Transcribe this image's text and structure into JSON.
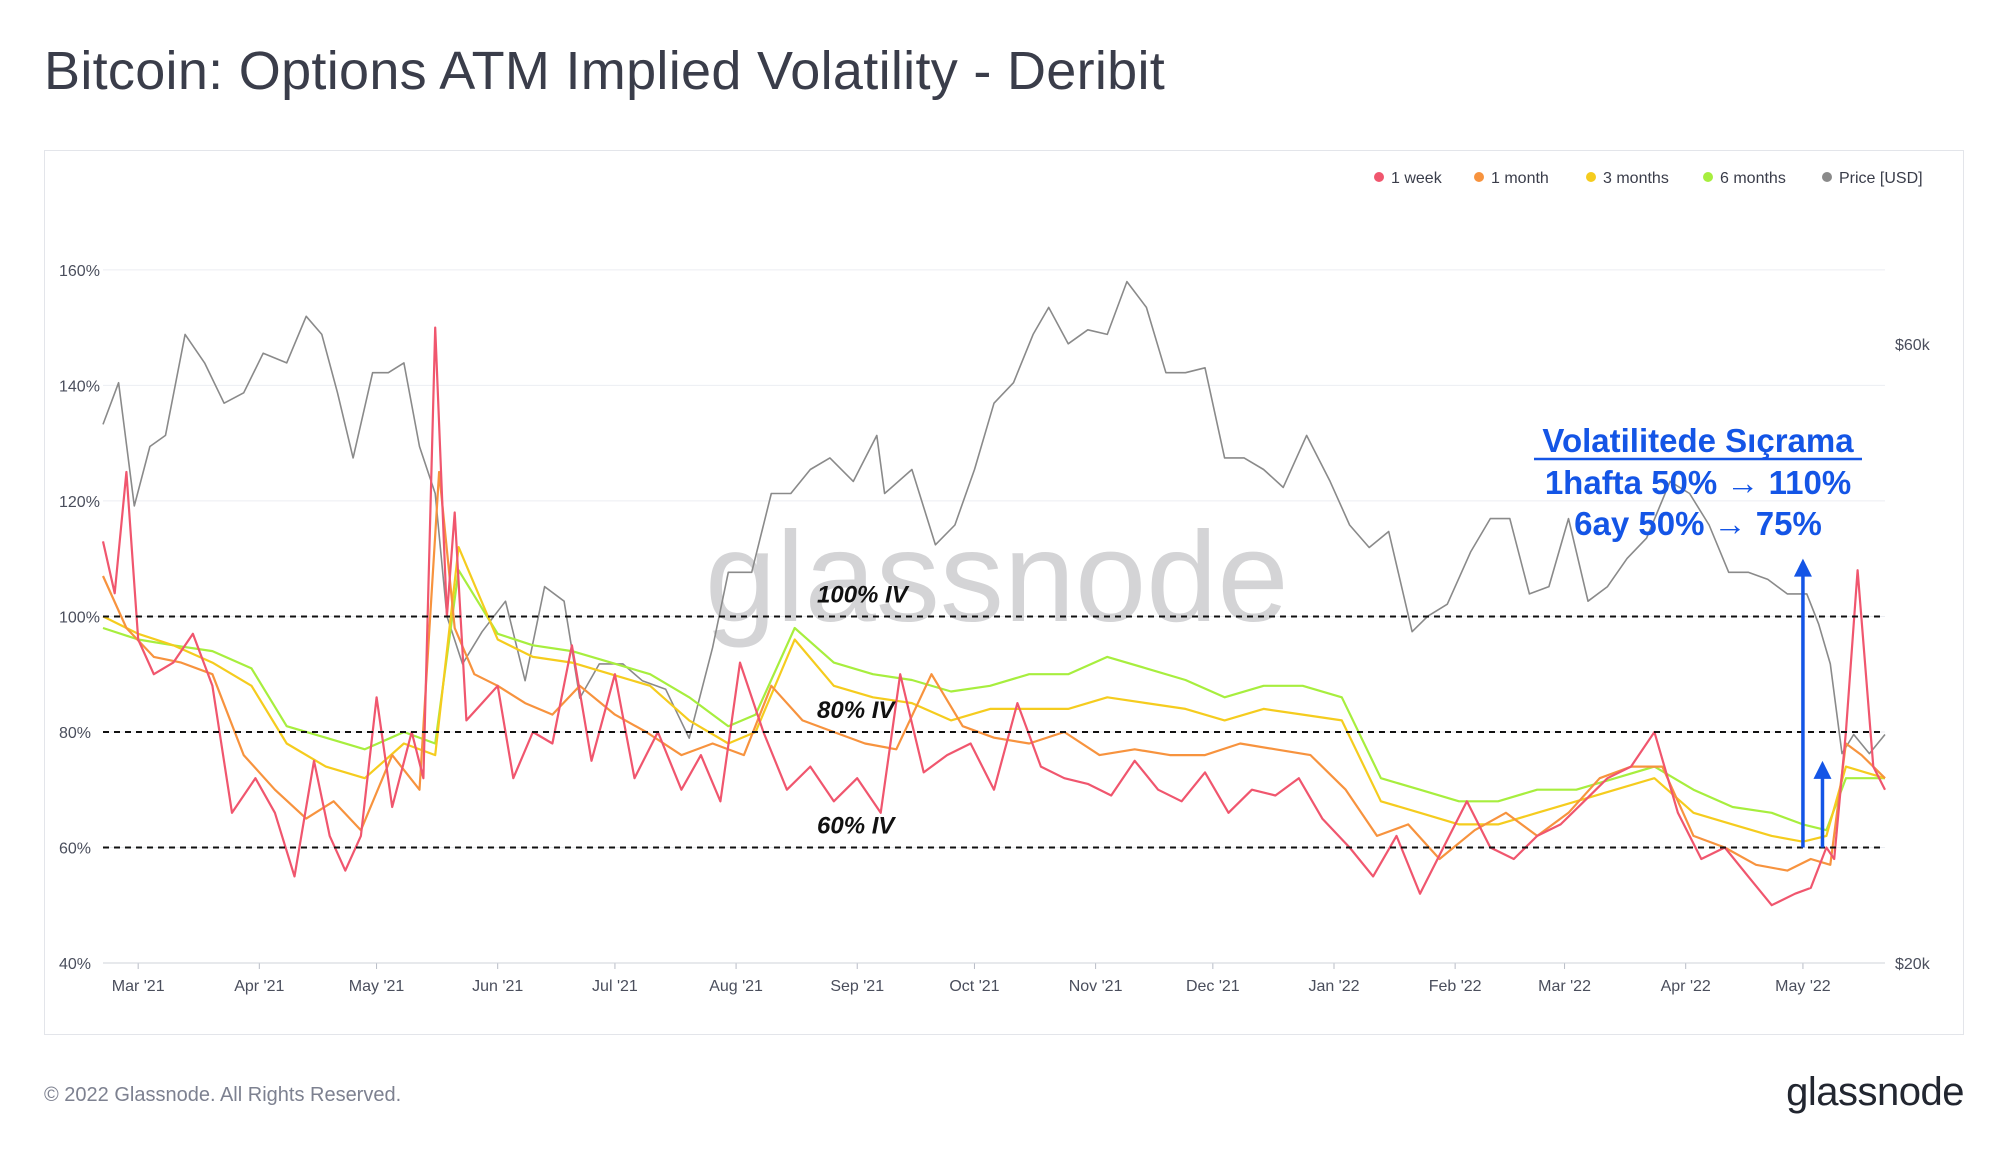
{
  "title": "Bitcoin: Options ATM Implied Volatility - Deribit",
  "footer": {
    "copyright": "© 2022 Glassnode. All Rights Reserved.",
    "logo": "glassnode"
  },
  "watermark": "glassnode",
  "colors": {
    "1w": "#f0566e",
    "1m": "#f7933e",
    "3m": "#f5cc1e",
    "6m": "#a7ee3e",
    "price": "#8a8a8a",
    "annotation": "#1455e6",
    "grid": "#eceef2"
  },
  "chart_data": {
    "type": "line",
    "title": "Bitcoin: Options ATM Implied Volatility - Deribit",
    "x_ticks": [
      "Mar '21",
      "Apr '21",
      "May '21",
      "Jun '21",
      "Jul '21",
      "Aug '21",
      "Sep '21",
      "Oct '21",
      "Nov '21",
      "Dec '21",
      "Jan '22",
      "Feb '22",
      "Mar '22",
      "Apr '22",
      "May '22"
    ],
    "x_range": [
      "2021-02-20",
      "2022-05-22"
    ],
    "y_left": {
      "ticks": [
        "40%",
        "60%",
        "80%",
        "100%",
        "120%",
        "140%",
        "160%"
      ],
      "range": [
        40,
        165
      ]
    },
    "y_right": {
      "ticks": [
        "$20k",
        "$60k"
      ],
      "scale": "log",
      "range": [
        20000,
        72000
      ]
    },
    "legend": [
      {
        "key": "1w",
        "label": "1 week"
      },
      {
        "key": "1m",
        "label": "1 month"
      },
      {
        "key": "3m",
        "label": "3 months"
      },
      {
        "key": "6m",
        "label": "6 months"
      },
      {
        "key": "price",
        "label": "Price [USD]"
      }
    ],
    "legend_position": "top-right",
    "reference_lines": [
      {
        "value": 100,
        "label": "100% IV"
      },
      {
        "value": 80,
        "label": "80% IV"
      },
      {
        "value": 60,
        "label": "60% IV"
      }
    ],
    "annotation": {
      "lines": [
        "Volatilitede Sıçrama",
        "1hafta 50% → 110%",
        "6ay 50% → 75%"
      ],
      "arrows": [
        {
          "date": "2022-05-01",
          "from": 60,
          "to": 110
        },
        {
          "date": "2022-05-06",
          "from": 60,
          "to": 75
        }
      ]
    },
    "series": [
      {
        "key": "1w",
        "name": "1 week",
        "x": [
          "2021-02-20",
          "2021-02-23",
          "2021-02-26",
          "2021-03-01",
          "2021-03-05",
          "2021-03-10",
          "2021-03-15",
          "2021-03-20",
          "2021-03-25",
          "2021-03-31",
          "2021-04-05",
          "2021-04-10",
          "2021-04-15",
          "2021-04-19",
          "2021-04-23",
          "2021-04-27",
          "2021-05-01",
          "2021-05-05",
          "2021-05-10",
          "2021-05-13",
          "2021-05-16",
          "2021-05-19",
          "2021-05-21",
          "2021-05-24",
          "2021-05-28",
          "2021-06-01",
          "2021-06-05",
          "2021-06-10",
          "2021-06-15",
          "2021-06-20",
          "2021-06-25",
          "2021-07-01",
          "2021-07-06",
          "2021-07-12",
          "2021-07-18",
          "2021-07-23",
          "2021-07-28",
          "2021-08-02",
          "2021-08-08",
          "2021-08-14",
          "2021-08-20",
          "2021-08-26",
          "2021-09-01",
          "2021-09-07",
          "2021-09-12",
          "2021-09-18",
          "2021-09-24",
          "2021-09-30",
          "2021-10-06",
          "2021-10-12",
          "2021-10-18",
          "2021-10-24",
          "2021-10-30",
          "2021-11-05",
          "2021-11-11",
          "2021-11-17",
          "2021-11-23",
          "2021-11-29",
          "2021-12-05",
          "2021-12-11",
          "2021-12-17",
          "2021-12-23",
          "2021-12-29",
          "2022-01-05",
          "2022-01-11",
          "2022-01-17",
          "2022-01-23",
          "2022-01-29",
          "2022-02-04",
          "2022-02-10",
          "2022-02-16",
          "2022-02-22",
          "2022-02-28",
          "2022-03-06",
          "2022-03-12",
          "2022-03-18",
          "2022-03-24",
          "2022-03-30",
          "2022-04-05",
          "2022-04-11",
          "2022-04-17",
          "2022-04-23",
          "2022-04-29",
          "2022-05-03",
          "2022-05-07",
          "2022-05-09",
          "2022-05-12",
          "2022-05-15",
          "2022-05-19",
          "2022-05-22"
        ],
        "values": [
          113,
          104,
          125,
          96,
          90,
          92,
          97,
          88,
          66,
          72,
          66,
          55,
          75,
          62,
          56,
          62,
          86,
          67,
          80,
          72,
          150,
          100,
          118,
          82,
          85,
          88,
          72,
          80,
          78,
          95,
          75,
          90,
          72,
          80,
          70,
          76,
          68,
          92,
          80,
          70,
          74,
          68,
          72,
          66,
          90,
          73,
          76,
          78,
          70,
          85,
          74,
          72,
          71,
          69,
          75,
          70,
          68,
          73,
          66,
          70,
          69,
          72,
          65,
          60,
          55,
          62,
          52,
          60,
          68,
          60,
          58,
          62,
          64,
          68,
          72,
          74,
          80,
          66,
          58,
          60,
          55,
          50,
          52,
          53,
          60,
          58,
          80,
          108,
          74,
          70
        ]
      },
      {
        "key": "1m",
        "name": "1 month",
        "x": [
          "2021-02-20",
          "2021-02-26",
          "2021-03-05",
          "2021-03-12",
          "2021-03-20",
          "2021-03-28",
          "2021-04-05",
          "2021-04-13",
          "2021-04-20",
          "2021-04-27",
          "2021-05-05",
          "2021-05-12",
          "2021-05-17",
          "2021-05-21",
          "2021-05-26",
          "2021-06-01",
          "2021-06-08",
          "2021-06-15",
          "2021-06-22",
          "2021-07-01",
          "2021-07-09",
          "2021-07-18",
          "2021-07-26",
          "2021-08-03",
          "2021-08-10",
          "2021-08-18",
          "2021-08-26",
          "2021-09-03",
          "2021-09-11",
          "2021-09-20",
          "2021-09-28",
          "2021-10-06",
          "2021-10-15",
          "2021-10-24",
          "2021-11-02",
          "2021-11-11",
          "2021-11-20",
          "2021-11-29",
          "2021-12-08",
          "2021-12-17",
          "2021-12-26",
          "2022-01-04",
          "2022-01-12",
          "2022-01-20",
          "2022-01-28",
          "2022-02-06",
          "2022-02-14",
          "2022-02-22",
          "2022-03-02",
          "2022-03-10",
          "2022-03-18",
          "2022-03-26",
          "2022-04-03",
          "2022-04-11",
          "2022-04-19",
          "2022-04-27",
          "2022-05-03",
          "2022-05-08",
          "2022-05-12",
          "2022-05-16",
          "2022-05-22"
        ],
        "values": [
          107,
          98,
          93,
          92,
          90,
          76,
          70,
          65,
          68,
          63,
          76,
          70,
          125,
          98,
          90,
          88,
          85,
          83,
          88,
          83,
          80,
          76,
          78,
          76,
          88,
          82,
          80,
          78,
          77,
          90,
          81,
          79,
          78,
          80,
          76,
          77,
          76,
          76,
          78,
          77,
          76,
          70,
          62,
          64,
          58,
          63,
          66,
          62,
          66,
          72,
          74,
          74,
          62,
          60,
          57,
          56,
          58,
          57,
          78,
          76,
          72
        ]
      },
      {
        "key": "3m",
        "name": "3 months",
        "x": [
          "2021-02-20",
          "2021-03-01",
          "2021-03-10",
          "2021-03-20",
          "2021-03-30",
          "2021-04-08",
          "2021-04-18",
          "2021-04-28",
          "2021-05-08",
          "2021-05-16",
          "2021-05-22",
          "2021-06-01",
          "2021-06-10",
          "2021-06-20",
          "2021-06-30",
          "2021-07-10",
          "2021-07-20",
          "2021-07-30",
          "2021-08-06",
          "2021-08-16",
          "2021-08-26",
          "2021-09-05",
          "2021-09-15",
          "2021-09-25",
          "2021-10-05",
          "2021-10-15",
          "2021-10-25",
          "2021-11-04",
          "2021-11-14",
          "2021-11-24",
          "2021-12-04",
          "2021-12-14",
          "2021-12-24",
          "2022-01-03",
          "2022-01-13",
          "2022-01-23",
          "2022-02-02",
          "2022-02-12",
          "2022-02-22",
          "2022-03-04",
          "2022-03-14",
          "2022-03-24",
          "2022-04-03",
          "2022-04-13",
          "2022-04-23",
          "2022-05-01",
          "2022-05-07",
          "2022-05-12",
          "2022-05-17",
          "2022-05-22"
        ],
        "values": [
          100,
          97,
          95,
          92,
          88,
          78,
          74,
          72,
          78,
          76,
          112,
          96,
          93,
          92,
          90,
          88,
          82,
          78,
          80,
          96,
          88,
          86,
          85,
          82,
          84,
          84,
          84,
          86,
          85,
          84,
          82,
          84,
          83,
          82,
          68,
          66,
          64,
          64,
          66,
          68,
          70,
          72,
          66,
          64,
          62,
          61,
          62,
          74,
          73,
          72
        ]
      },
      {
        "key": "6m",
        "name": "6 months",
        "x": [
          "2021-02-20",
          "2021-03-01",
          "2021-03-10",
          "2021-03-20",
          "2021-03-30",
          "2021-04-08",
          "2021-04-18",
          "2021-04-28",
          "2021-05-08",
          "2021-05-16",
          "2021-05-22",
          "2021-06-01",
          "2021-06-10",
          "2021-06-20",
          "2021-06-30",
          "2021-07-10",
          "2021-07-20",
          "2021-07-30",
          "2021-08-06",
          "2021-08-16",
          "2021-08-26",
          "2021-09-05",
          "2021-09-15",
          "2021-09-25",
          "2021-10-05",
          "2021-10-15",
          "2021-10-25",
          "2021-11-04",
          "2021-11-14",
          "2021-11-24",
          "2021-12-04",
          "2021-12-14",
          "2021-12-24",
          "2022-01-03",
          "2022-01-13",
          "2022-01-23",
          "2022-02-02",
          "2022-02-12",
          "2022-02-22",
          "2022-03-04",
          "2022-03-14",
          "2022-03-24",
          "2022-04-03",
          "2022-04-13",
          "2022-04-23",
          "2022-05-01",
          "2022-05-07",
          "2022-05-12",
          "2022-05-17",
          "2022-05-22"
        ],
        "values": [
          98,
          96,
          95,
          94,
          91,
          81,
          79,
          77,
          80,
          78,
          108,
          97,
          95,
          94,
          92,
          90,
          86,
          81,
          83,
          98,
          92,
          90,
          89,
          87,
          88,
          90,
          90,
          93,
          91,
          89,
          86,
          88,
          88,
          86,
          72,
          70,
          68,
          68,
          70,
          70,
          72,
          74,
          70,
          67,
          66,
          64,
          63,
          72,
          72,
          72
        ]
      },
      {
        "key": "price",
        "name": "Price [USD]",
        "x": [
          "2021-02-20",
          "2021-02-24",
          "2021-02-28",
          "2021-03-04",
          "2021-03-08",
          "2021-03-13",
          "2021-03-18",
          "2021-03-23",
          "2021-03-28",
          "2021-04-02",
          "2021-04-08",
          "2021-04-13",
          "2021-04-17",
          "2021-04-21",
          "2021-04-25",
          "2021-04-30",
          "2021-05-04",
          "2021-05-08",
          "2021-05-12",
          "2021-05-16",
          "2021-05-19",
          "2021-05-23",
          "2021-05-28",
          "2021-06-03",
          "2021-06-08",
          "2021-06-13",
          "2021-06-18",
          "2021-06-22",
          "2021-06-27",
          "2021-07-03",
          "2021-07-08",
          "2021-07-14",
          "2021-07-20",
          "2021-07-26",
          "2021-07-30",
          "2021-08-05",
          "2021-08-10",
          "2021-08-15",
          "2021-08-20",
          "2021-08-25",
          "2021-08-31",
          "2021-09-06",
          "2021-09-08",
          "2021-09-15",
          "2021-09-21",
          "2021-09-26",
          "2021-10-01",
          "2021-10-06",
          "2021-10-11",
          "2021-10-16",
          "2021-10-20",
          "2021-10-25",
          "2021-10-30",
          "2021-11-04",
          "2021-11-09",
          "2021-11-14",
          "2021-11-19",
          "2021-11-24",
          "2021-11-29",
          "2021-12-04",
          "2021-12-09",
          "2021-12-14",
          "2021-12-19",
          "2021-12-25",
          "2021-12-31",
          "2022-01-05",
          "2022-01-10",
          "2022-01-15",
          "2022-01-21",
          "2022-01-25",
          "2022-01-30",
          "2022-02-05",
          "2022-02-10",
          "2022-02-15",
          "2022-02-20",
          "2022-02-25",
          "2022-03-02",
          "2022-03-07",
          "2022-03-12",
          "2022-03-17",
          "2022-03-22",
          "2022-03-28",
          "2022-04-02",
          "2022-04-07",
          "2022-04-12",
          "2022-04-17",
          "2022-04-22",
          "2022-04-27",
          "2022-05-02",
          "2022-05-05",
          "2022-05-08",
          "2022-05-11",
          "2022-05-14",
          "2022-05-18",
          "2022-05-22"
        ],
        "values": [
          52000,
          56000,
          45000,
          50000,
          51000,
          61000,
          58000,
          54000,
          55000,
          59000,
          58000,
          63000,
          61000,
          55000,
          49000,
          57000,
          57000,
          58000,
          50000,
          46000,
          37000,
          34000,
          36000,
          38000,
          33000,
          39000,
          38000,
          32000,
          34000,
          34000,
          33000,
          32500,
          29800,
          35000,
          40000,
          40000,
          46000,
          46000,
          48000,
          49000,
          47000,
          51000,
          46000,
          48000,
          42000,
          43500,
          48000,
          54000,
          56000,
          61000,
          64000,
          60000,
          61500,
          61000,
          67000,
          64000,
          57000,
          57000,
          57500,
          49000,
          49000,
          48000,
          46500,
          51000,
          47000,
          43500,
          41800,
          43000,
          36000,
          37000,
          37800,
          41500,
          44000,
          44000,
          38500,
          39000,
          44000,
          38000,
          39000,
          41000,
          42500,
          47000,
          46000,
          43500,
          40000,
          40000,
          39500,
          38500,
          38500,
          36500,
          34000,
          29000,
          30000,
          29000,
          30000
        ]
      }
    ]
  }
}
